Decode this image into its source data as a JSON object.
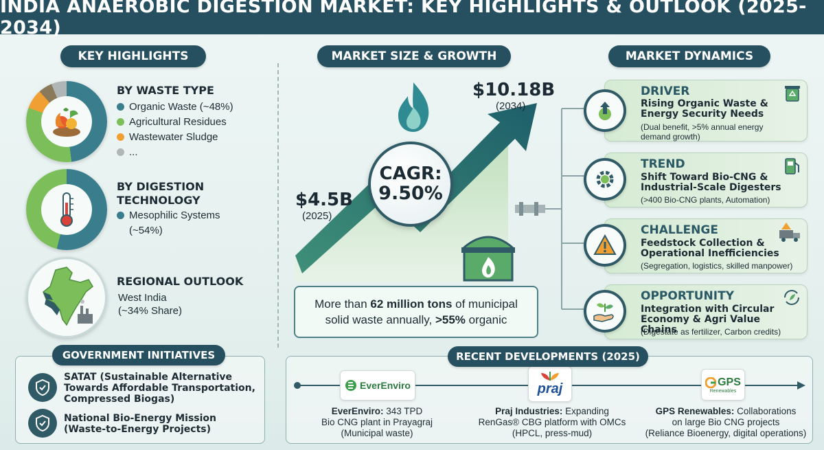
{
  "title": "INDIA ANAEROBIC DIGESTION MARKET: KEY HIGHLIGHTS & OUTLOOK (2025-2034)",
  "sections": {
    "key_highlights": "KEY HIGHLIGHTS",
    "market_size": "MARKET SIZE & GROWTH",
    "market_dynamics": "MARKET DYNAMICS",
    "government": "GOVERNMENT INITIATIVES",
    "recent": "RECENT DEVELOPMENTS (2025)"
  },
  "waste_type": {
    "heading": "BY WASTE TYPE",
    "items": [
      {
        "label": "Organic Waste (~48%)",
        "color": "#3a7d8c"
      },
      {
        "label": "Agricultural Residues",
        "color": "#7cbf5a"
      },
      {
        "label": "Wastewater Sludge",
        "color": "#f0a033"
      },
      {
        "label": "...",
        "color": "#b0b5b5"
      }
    ]
  },
  "digestion_tech": {
    "heading_line1": "BY DIGESTION",
    "heading_line2": "TECHNOLOGY",
    "item_line1": "Mesophilic Systems",
    "item_line2": "(~54%)",
    "color": "#3a7d8c"
  },
  "regional": {
    "heading": "REGIONAL OUTLOOK",
    "line1": "West India",
    "line2": "(~34% Share)"
  },
  "government": {
    "item1_line1": "SATAT (Sustainable Alternative",
    "item1_line2": "Towards Affordable Transportation,",
    "item1_line3": "Compressed Biogas)",
    "item2_line1": "National Bio-Energy Mission",
    "item2_line2": "(Waste-to-Energy Projects)"
  },
  "market": {
    "start_value": "$4.5B",
    "start_year": "(2025)",
    "end_value": "$10.18B",
    "end_year": "(2034)",
    "cagr_label": "CAGR:",
    "cagr_value": "9.50%",
    "fact_pre": "More than ",
    "fact_bold1": "62 million tons",
    "fact_mid": " of municipal",
    "fact_line2_pre": "solid waste annually, ",
    "fact_bold2": ">55%",
    "fact_post": " organic"
  },
  "dynamics": [
    {
      "kind": "DRIVER",
      "head": "Rising Organic Waste & Energy Security Needs",
      "note": "(Dual benefit, >5% annual energy demand growth)"
    },
    {
      "kind": "TREND",
      "head": "Shift Toward Bio-CNG & Industrial-Scale Digesters",
      "note": "(>400 Bio-CNG plants, Automation)"
    },
    {
      "kind": "CHALLENGE",
      "head": "Feedstock Collection & Operational Inefficiencies",
      "note": "(Segregation, logistics, skilled manpower)"
    },
    {
      "kind": "OPPORTUNITY",
      "head": "Integration with Circular Economy & Agri Value Chains",
      "note": "(Digestate as fertilizer, Carbon credits)"
    }
  ],
  "developments": [
    {
      "logo": "EverEnviro",
      "company": "EverEnviro:",
      "text1": " 343 TPD",
      "text2": "Bio CNG plant in Prayagraj",
      "text3": "(Municipal waste)"
    },
    {
      "logo": "praj",
      "company": "Praj Industries:",
      "text1": " Expanding",
      "text2": "RenGas® CBG platform with OMCs",
      "text3": "(HPCL, press-mud)"
    },
    {
      "logo": "GPS",
      "logo_sub": "Renewables",
      "company": "GPS Renewables:",
      "text1": " Collaborations",
      "text2": "on large Bio CNG projects",
      "text3": "(Reliance Bioenergy, digital operations)"
    }
  ],
  "colors": {
    "primary": "#26505f",
    "teal": "#3a7d8c",
    "green": "#7cbf5a",
    "orange": "#f0a033",
    "grey": "#b0b5b5"
  }
}
